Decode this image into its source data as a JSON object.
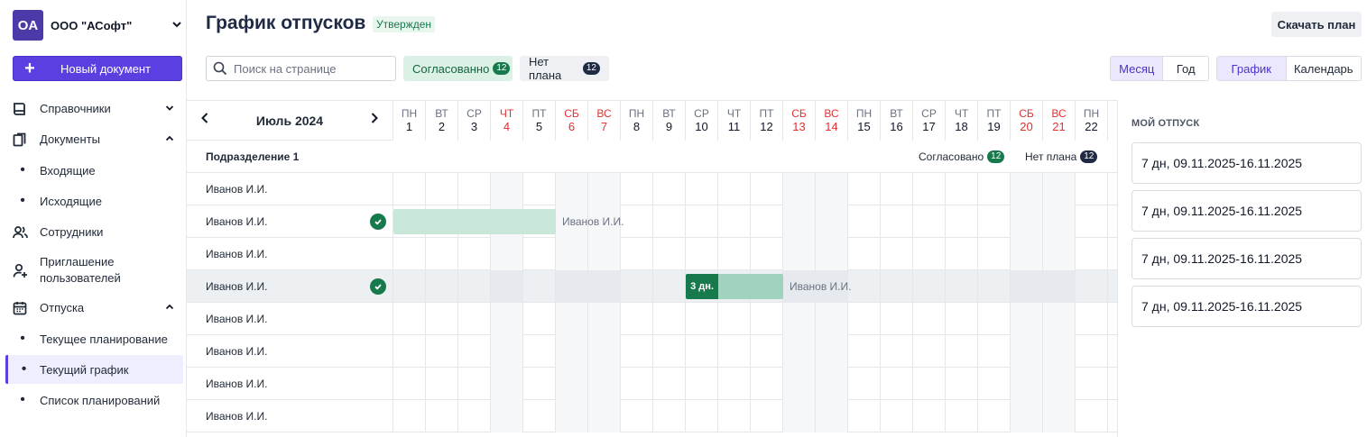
{
  "sidebar": {
    "org": {
      "initials": "OA",
      "name": "ООО \"АСофт\""
    },
    "new_doc_label": "Новый документ",
    "items": [
      {
        "label": "Справочники",
        "icon": "book-icon"
      },
      {
        "label": "Документы",
        "icon": "documents-icon"
      },
      {
        "label": "Входящие"
      },
      {
        "label": "Исходящие"
      },
      {
        "label": "Сотрудники",
        "icon": "users-icon"
      },
      {
        "label": "Приглашение пользователей",
        "icon": "user-plus-icon"
      },
      {
        "label": "Отпуска",
        "icon": "calendar-icon"
      },
      {
        "label": "Текущее планирование"
      },
      {
        "label": "Текущий график"
      },
      {
        "label": "Список планирований"
      }
    ]
  },
  "header": {
    "title": "График отпусков",
    "status": "Утвержден",
    "download_label": "Скачать план",
    "search_placeholder": "Поиск на странице",
    "filter_agreed": {
      "label": "Согласованно",
      "count": "12"
    },
    "filter_noplan": {
      "label": "Нет плана",
      "count": "12"
    },
    "view_period": [
      "Месяц",
      "Год"
    ],
    "view_mode": [
      "График",
      "Календарь"
    ]
  },
  "gantt": {
    "month": "Июль 2024",
    "days": [
      {
        "w": "ПН",
        "n": "1"
      },
      {
        "w": "ВТ",
        "n": "2"
      },
      {
        "w": "СР",
        "n": "3"
      },
      {
        "w": "ЧТ",
        "n": "4",
        "we": true
      },
      {
        "w": "ПТ",
        "n": "5"
      },
      {
        "w": "СБ",
        "n": "6",
        "we": true
      },
      {
        "w": "ВС",
        "n": "7",
        "we": true
      },
      {
        "w": "ПН",
        "n": "8"
      },
      {
        "w": "ВТ",
        "n": "9"
      },
      {
        "w": "СР",
        "n": "10"
      },
      {
        "w": "ЧТ",
        "n": "11"
      },
      {
        "w": "ПТ",
        "n": "12"
      },
      {
        "w": "СБ",
        "n": "13",
        "we": true
      },
      {
        "w": "ВС",
        "n": "14",
        "we": true
      },
      {
        "w": "ПН",
        "n": "15"
      },
      {
        "w": "ВТ",
        "n": "16"
      },
      {
        "w": "СР",
        "n": "17"
      },
      {
        "w": "ЧТ",
        "n": "18"
      },
      {
        "w": "ПТ",
        "n": "19"
      },
      {
        "w": "СБ",
        "n": "20",
        "we": true
      },
      {
        "w": "ВС",
        "n": "21",
        "we": true
      },
      {
        "w": "ПН",
        "n": "22"
      }
    ],
    "department": {
      "name": "Подразделение 1",
      "agreed_label": "Согласовано",
      "agreed_count": "12",
      "noplan_label": "Нет плана",
      "noplan_count": "12"
    },
    "rows": [
      {
        "name": "Иванов И.И."
      },
      {
        "name": "Иванов И.И.",
        "approved": true,
        "bar": {
          "start_day": 1,
          "end_day": 5,
          "label": "Иванов И.И."
        }
      },
      {
        "name": "Иванов И.И."
      },
      {
        "name": "Иванов И.И.",
        "approved": true,
        "selected": true,
        "bar": {
          "start_day": 10,
          "end_day": 12,
          "tag": "3 дн.",
          "label": "Иванов И.И."
        }
      },
      {
        "name": "Иванов И.И."
      },
      {
        "name": "Иванов И.И."
      },
      {
        "name": "Иванов И.И."
      },
      {
        "name": "Иванов И.И."
      }
    ]
  },
  "panel": {
    "title": "МОЙ ОТПУСК",
    "vacations": [
      "7 дн, 09.11.2025-16.11.2025",
      "7 дн, 09.11.2025-16.11.2025",
      "7 дн, 09.11.2025-16.11.2025",
      "7 дн, 09.11.2025-16.11.2025"
    ]
  }
}
